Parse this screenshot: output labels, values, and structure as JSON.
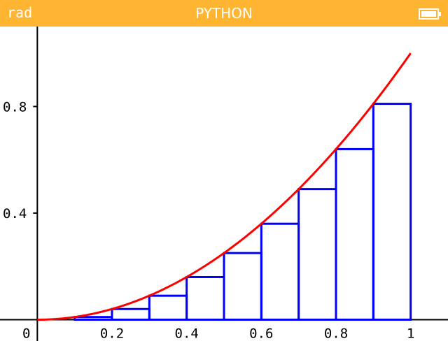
{
  "status_bar": {
    "angle_mode": "rad",
    "title": "PYTHON",
    "battery_icon": "battery-icon",
    "color": "#ffb531"
  },
  "chart_data": {
    "type": "line",
    "title": "",
    "xlabel": "",
    "ylabel": "",
    "xlim": [
      -0.1,
      1.1
    ],
    "ylim": [
      -0.08,
      1.1
    ],
    "x_ticks": [
      {
        "value": 0.2,
        "label": "0.2"
      },
      {
        "value": 0.4,
        "label": "0.4"
      },
      {
        "value": 0.6,
        "label": "0.6"
      },
      {
        "value": 0.8,
        "label": "0.8"
      },
      {
        "value": 1.0,
        "label": "1"
      }
    ],
    "y_ticks": [
      {
        "value": 0.4,
        "label": "0.4"
      },
      {
        "value": 0.8,
        "label": "0.8"
      }
    ],
    "origin_label": "0",
    "curve": {
      "function": "x^2",
      "color": "#ff0000",
      "x": [
        0,
        0.05,
        0.1,
        0.15,
        0.2,
        0.25,
        0.3,
        0.35,
        0.4,
        0.45,
        0.5,
        0.55,
        0.6,
        0.65,
        0.7,
        0.75,
        0.8,
        0.85,
        0.9,
        0.95,
        1.0
      ],
      "y": [
        0,
        0.0025,
        0.01,
        0.0225,
        0.04,
        0.0625,
        0.09,
        0.1225,
        0.16,
        0.2025,
        0.25,
        0.3025,
        0.36,
        0.4225,
        0.49,
        0.5625,
        0.64,
        0.7225,
        0.81,
        0.9025,
        1.0
      ]
    },
    "rectangles": {
      "color": "#0000ff",
      "x_left": [
        0.0,
        0.1,
        0.2,
        0.3,
        0.4,
        0.5,
        0.6,
        0.7,
        0.8,
        0.9
      ],
      "width": 0.1,
      "heights": [
        0.0,
        0.01,
        0.04,
        0.09,
        0.16,
        0.25,
        0.36,
        0.49,
        0.64,
        0.81
      ]
    }
  }
}
